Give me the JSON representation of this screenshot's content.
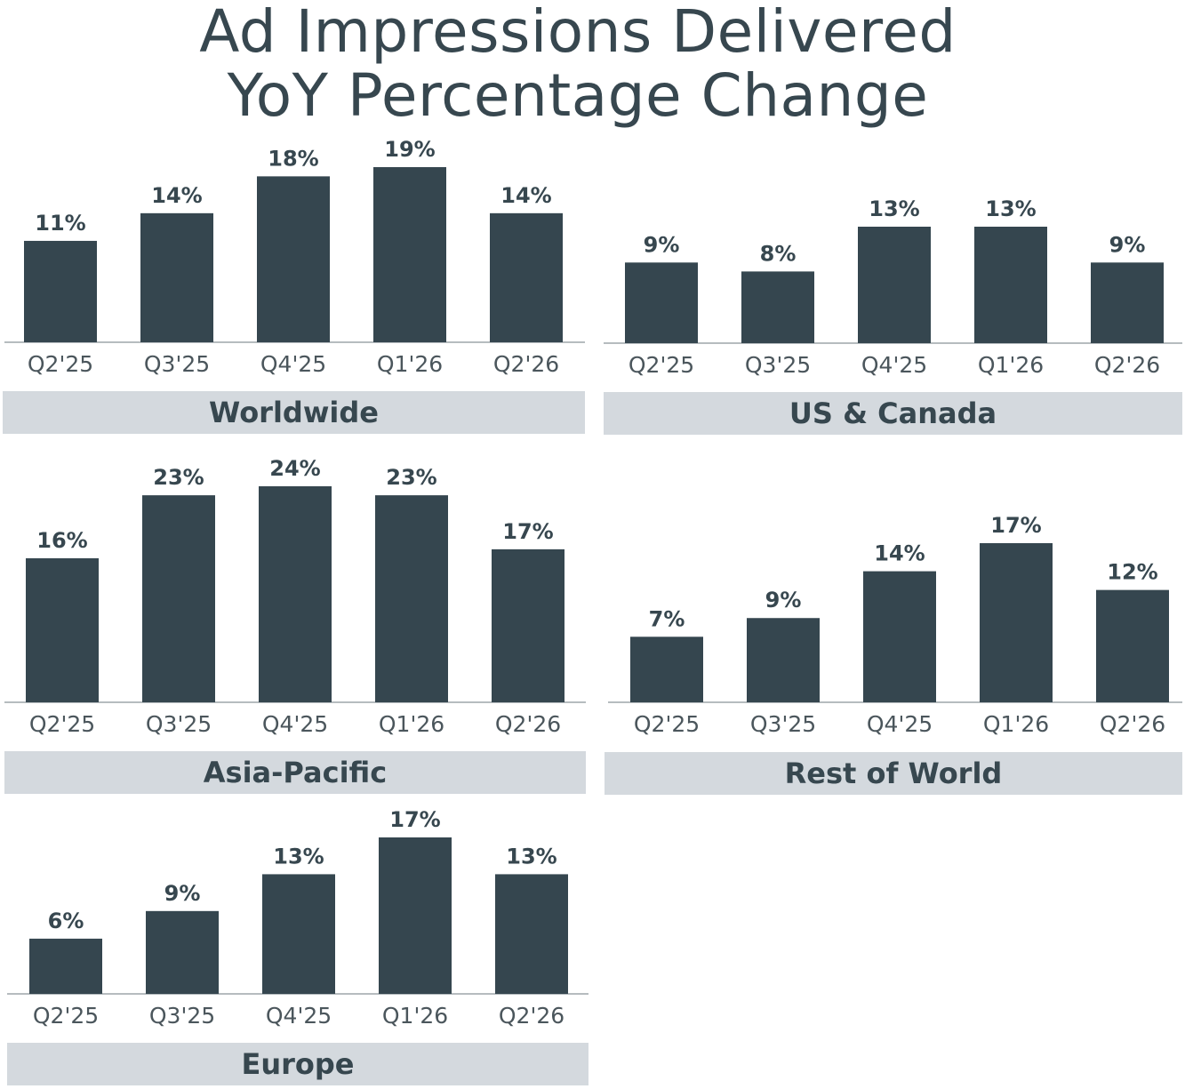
{
  "title_line1": "Ad Impressions Delivered",
  "title_line2": "YoY Percentage Change",
  "colors": {
    "bar": "#35464f",
    "banner": "#d4d9de",
    "text": "#37474f"
  },
  "chart_data": [
    {
      "type": "bar",
      "title": "Worldwide",
      "categories": [
        "Q2'25",
        "Q3'25",
        "Q4'25",
        "Q1'26",
        "Q2'26"
      ],
      "values": [
        11,
        14,
        18,
        19,
        14
      ],
      "labels": [
        "11%",
        "14%",
        "18%",
        "19%",
        "14%"
      ],
      "ylim": [
        0,
        19
      ]
    },
    {
      "type": "bar",
      "title": "US & Canada",
      "categories": [
        "Q2'25",
        "Q3'25",
        "Q4'25",
        "Q1'26",
        "Q2'26"
      ],
      "values": [
        9,
        8,
        13,
        13,
        9
      ],
      "labels": [
        "9%",
        "8%",
        "13%",
        "13%",
        "9%"
      ],
      "ylim": [
        0,
        13
      ]
    },
    {
      "type": "bar",
      "title": "Asia-Pacific",
      "categories": [
        "Q2'25",
        "Q3'25",
        "Q4'25",
        "Q1'26",
        "Q2'26"
      ],
      "values": [
        16,
        23,
        24,
        23,
        17
      ],
      "labels": [
        "16%",
        "23%",
        "24%",
        "23%",
        "17%"
      ],
      "ylim": [
        0,
        24
      ]
    },
    {
      "type": "bar",
      "title": "Rest of World",
      "categories": [
        "Q2'25",
        "Q3'25",
        "Q4'25",
        "Q1'26",
        "Q2'26"
      ],
      "values": [
        7,
        9,
        14,
        17,
        12
      ],
      "labels": [
        "7%",
        "9%",
        "14%",
        "17%",
        "12%"
      ],
      "ylim": [
        0,
        17
      ]
    },
    {
      "type": "bar",
      "title": "Europe",
      "categories": [
        "Q2'25",
        "Q3'25",
        "Q4'25",
        "Q1'26",
        "Q2'26"
      ],
      "values": [
        6,
        9,
        13,
        17,
        13
      ],
      "labels": [
        "6%",
        "9%",
        "13%",
        "17%",
        "13%"
      ],
      "ylim": [
        0,
        17
      ]
    }
  ]
}
